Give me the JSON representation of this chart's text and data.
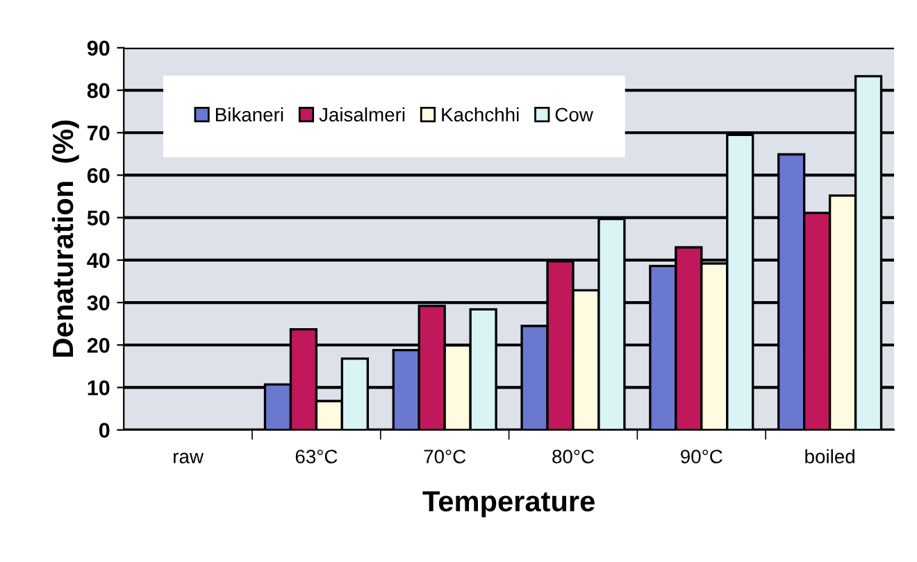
{
  "chart_data": {
    "type": "bar",
    "xlabel": "Temperature",
    "ylabel": "Denaturation  (%)",
    "categories": [
      "raw",
      "63°C",
      "70°C",
      "80°C",
      "90°C",
      "boiled"
    ],
    "series": [
      {
        "name": "Bikaneri",
        "color": "#6a78d0",
        "values": [
          null,
          10.7,
          18.8,
          24.5,
          38.6,
          64.9
        ]
      },
      {
        "name": "Jaisalmeri",
        "color": "#c0185a",
        "values": [
          null,
          23.7,
          29.2,
          39.7,
          43,
          51.1
        ]
      },
      {
        "name": "Kachchhi",
        "color": "#fffbe0",
        "values": [
          null,
          6.8,
          19.9,
          32.9,
          39.2,
          55.2
        ]
      },
      {
        "name": "Cow",
        "color": "#d8f4f4",
        "values": [
          null,
          16.8,
          28.4,
          49.7,
          69.5,
          83.3
        ]
      }
    ],
    "ylim": [
      0,
      90
    ],
    "yticks": [
      0,
      10,
      20,
      30,
      40,
      50,
      60,
      70,
      80,
      90
    ],
    "grid": "y",
    "legend": "top left"
  }
}
